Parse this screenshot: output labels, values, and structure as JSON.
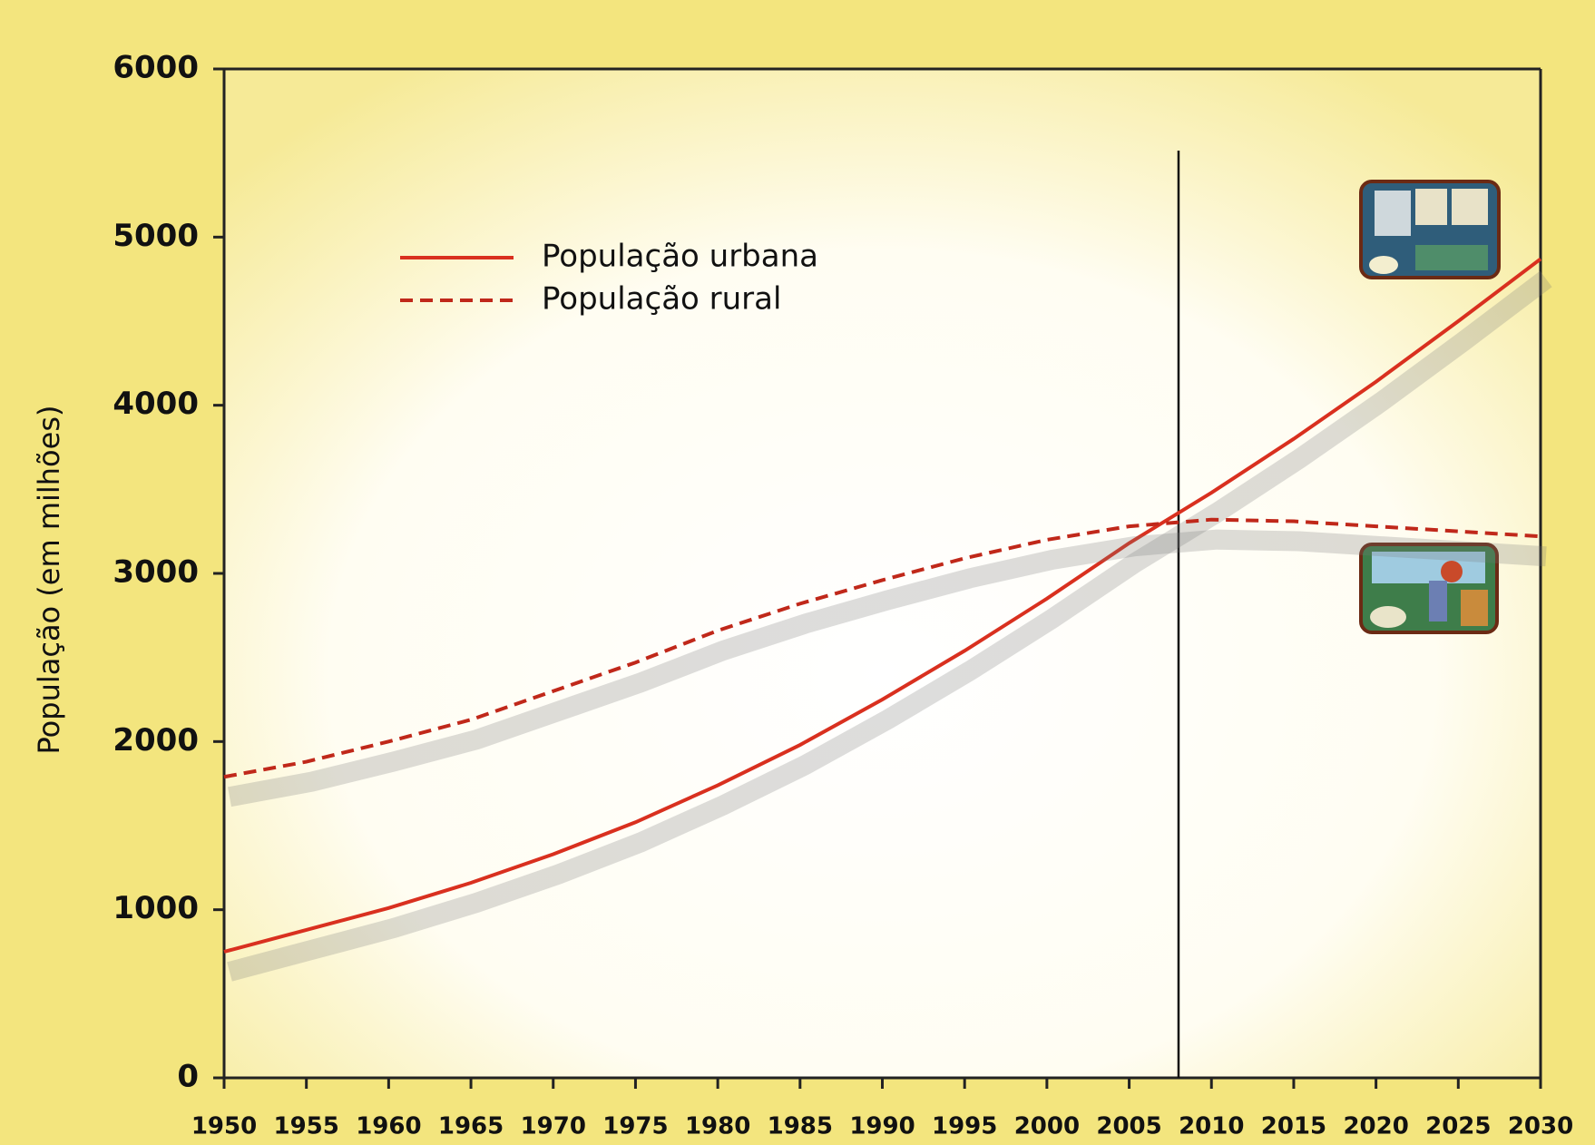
{
  "chart_data": {
    "type": "line",
    "y_label": "População (em milhões)",
    "x": [
      1950,
      1955,
      1960,
      1965,
      1970,
      1975,
      1980,
      1985,
      1990,
      1995,
      2000,
      2005,
      2010,
      2015,
      2020,
      2025,
      2030
    ],
    "series": [
      {
        "name": "População urbana",
        "color": "#d9301f",
        "style": "solid",
        "values": [
          750,
          880,
          1010,
          1160,
          1330,
          1520,
          1740,
          1980,
          2250,
          2540,
          2850,
          3180,
          3480,
          3800,
          4140,
          4500,
          4870
        ]
      },
      {
        "name": "População rural",
        "color": "#c0281a",
        "style": "dashed",
        "values": [
          1790,
          1880,
          2000,
          2130,
          2300,
          2470,
          2660,
          2820,
          2960,
          3090,
          3200,
          3280,
          3320,
          3310,
          3280,
          3250,
          3220
        ]
      }
    ],
    "marker_x": 2008,
    "xlim": [
      1950,
      2030
    ],
    "xticks": [
      1950,
      1955,
      1960,
      1965,
      1970,
      1975,
      1980,
      1985,
      1990,
      1995,
      2000,
      2005,
      2010,
      2015,
      2020,
      2025,
      2030
    ],
    "ylim": [
      0,
      6000
    ],
    "yticks": [
      0,
      1000,
      2000,
      3000,
      4000,
      5000,
      6000
    ],
    "grid": false,
    "legend": "top-left"
  }
}
